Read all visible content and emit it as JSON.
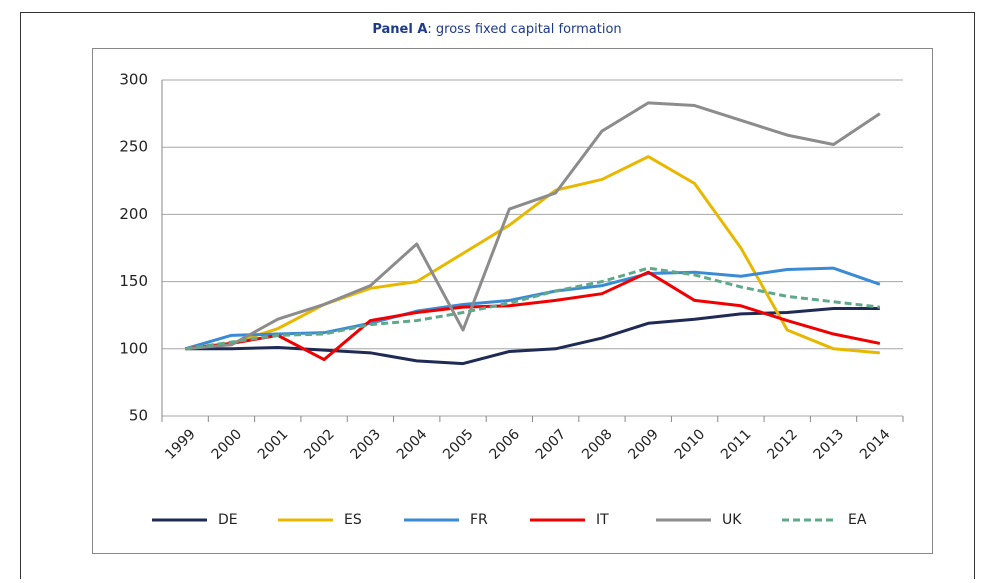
{
  "chart_data": {
    "type": "line",
    "title_prefix": "Panel A",
    "title": ": gross fixed capital formation",
    "categories": [
      "1999",
      "2000",
      "2001",
      "2002",
      "2003",
      "2004",
      "2005",
      "2006",
      "2007",
      "2008",
      "2009",
      "2010",
      "2011",
      "2012",
      "2013",
      "2014"
    ],
    "series": [
      {
        "name": "DE",
        "color": "#1f2a55",
        "values": [
          100,
          100,
          101,
          99,
          97,
          91,
          89,
          98,
          100,
          108,
          119,
          122,
          126,
          127,
          130,
          130
        ]
      },
      {
        "name": "ES",
        "color": "#e8b800",
        "values": [
          100,
          104,
          115,
          133,
          145,
          150,
          171,
          192,
          218,
          226,
          243,
          223,
          175,
          114,
          100,
          97
        ]
      },
      {
        "name": "FR",
        "color": "#3a8ad6",
        "values": [
          100,
          110,
          111,
          112,
          119,
          128,
          133,
          136,
          143,
          147,
          156,
          157,
          154,
          159,
          160,
          148
        ]
      },
      {
        "name": "IT",
        "color": "#f00000",
        "values": [
          100,
          104,
          110,
          92,
          121,
          127,
          131,
          132,
          136,
          141,
          157,
          136,
          132,
          121,
          111,
          104
        ]
      },
      {
        "name": "UK",
        "color": "#8c8c8c",
        "values": [
          100,
          103,
          122,
          133,
          147,
          178,
          114,
          204,
          216,
          262,
          283,
          281,
          270,
          259,
          252,
          275
        ]
      },
      {
        "name": "EA",
        "color": "#5fa88a",
        "dashed": true,
        "values": [
          100,
          105,
          110,
          111,
          118,
          121,
          127,
          134,
          143,
          150,
          160,
          155,
          146,
          139,
          135,
          131
        ]
      }
    ],
    "ylim": [
      50,
      300
    ],
    "yticks": [
      50,
      100,
      150,
      200,
      250,
      300
    ],
    "grid": true,
    "legend": "bottom"
  }
}
